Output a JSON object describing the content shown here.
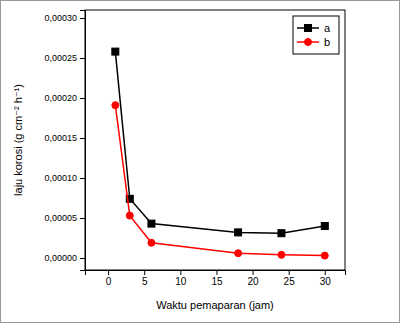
{
  "chart_data": {
    "type": "line",
    "x_label": "Waktu pemaparan (jam)",
    "y_label": "laju korosi (g cm⁻² h⁻¹)",
    "x": [
      1,
      3,
      6,
      18,
      24,
      30
    ],
    "series": [
      {
        "name": "a",
        "color": "#000000",
        "marker": "square",
        "line_style": "solid",
        "values": [
          0.000258,
          7.4e-05,
          4.3e-05,
          3.2e-05,
          3.1e-05,
          4e-05
        ]
      },
      {
        "name": "b",
        "color": "#ff0000",
        "marker": "circle",
        "line_style": "solid",
        "values": [
          0.000191,
          5.3e-05,
          1.9e-05,
          6e-06,
          4e-06,
          3e-06
        ]
      }
    ],
    "xlim": [
      -3.2,
      32.8
    ],
    "xticks": [
      0,
      5,
      10,
      15,
      20,
      25,
      30
    ],
    "ylim": [
      -1.5e-05,
      0.00031
    ],
    "yticks": [
      {
        "value": 0,
        "label": "0,00000"
      },
      {
        "value": 5e-05,
        "label": "0,00005"
      },
      {
        "value": 0.0001,
        "label": "0,00010"
      },
      {
        "value": 0.00015,
        "label": "0,00015"
      },
      {
        "value": 0.0002,
        "label": "0,00020"
      },
      {
        "value": 0.00025,
        "label": "0,00025"
      },
      {
        "value": 0.0003,
        "label": "0,00030"
      }
    ],
    "grid": false,
    "legend": "upper right"
  }
}
